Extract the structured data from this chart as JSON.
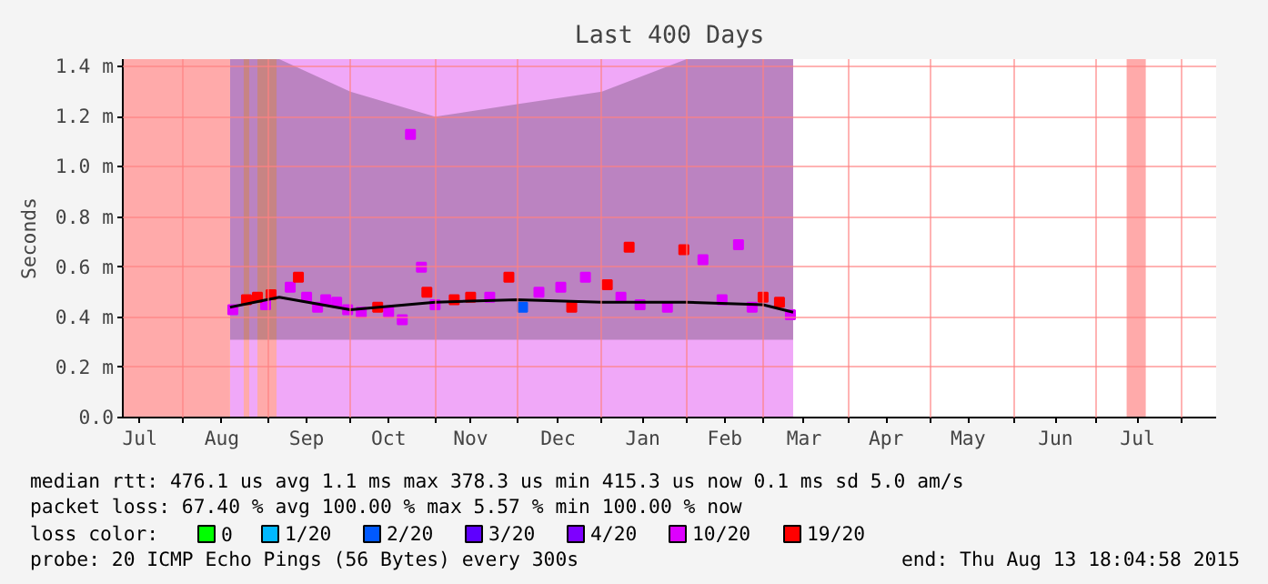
{
  "chart_data": {
    "type": "scatter",
    "title": "Last 400 Days",
    "ylabel": "Seconds",
    "legend_title": "loss color:",
    "legend": "bottom",
    "marker": "square",
    "grid": true,
    "xlim": [
      "2014-07-09T18:05",
      "2015-08-13T18:05"
    ],
    "xticks": [
      {
        "value": "2014-07-16",
        "label": "Jul"
      },
      {
        "value": "2014-08-01",
        "label": null
      },
      {
        "value": "2014-08-15",
        "label": "Aug"
      },
      {
        "value": "2014-09-01",
        "label": null
      },
      {
        "value": "2014-09-15",
        "label": "Sep"
      },
      {
        "value": "2014-10-01",
        "label": null
      },
      {
        "value": "2014-10-15",
        "label": "Oct"
      },
      {
        "value": "2014-11-01",
        "label": null
      },
      {
        "value": "2014-11-14",
        "label": "Nov"
      },
      {
        "value": "2014-12-01",
        "label": null
      },
      {
        "value": "2014-12-16",
        "label": "Dec"
      },
      {
        "value": "2015-01-01",
        "label": null
      },
      {
        "value": "2015-01-16",
        "label": "Jan"
      },
      {
        "value": "2015-02-01",
        "label": null
      },
      {
        "value": "2015-02-15",
        "label": "Feb"
      },
      {
        "value": "2015-03-01",
        "label": null
      },
      {
        "value": "2015-03-16",
        "label": "Mar"
      },
      {
        "value": "2015-04-01",
        "label": null
      },
      {
        "value": "2015-04-15",
        "label": "Apr"
      },
      {
        "value": "2015-05-01",
        "label": null
      },
      {
        "value": "2015-05-15",
        "label": "May"
      },
      {
        "value": "2015-06-01",
        "label": null
      },
      {
        "value": "2015-06-16",
        "label": "Jun"
      },
      {
        "value": "2015-07-01",
        "label": null
      },
      {
        "value": "2015-07-16",
        "label": "Jul"
      },
      {
        "value": "2015-08-01",
        "label": null
      }
    ],
    "ylim": [
      0,
      1.43
    ],
    "yticks": [
      {
        "value": 0,
        "label": "0.0"
      },
      {
        "value": 0.2,
        "label": "0.2 m"
      },
      {
        "value": 0.4,
        "label": "0.4 m"
      },
      {
        "value": 0.6,
        "label": "0.6 m"
      },
      {
        "value": 0.8,
        "label": "0.8 m"
      },
      {
        "value": 1.0,
        "label": "1.0 m"
      },
      {
        "value": 1.2,
        "label": "1.2 m"
      },
      {
        "value": 1.4,
        "label": "1.4 m"
      }
    ],
    "bands": [
      {
        "axis": "x",
        "from": "2014-08-18",
        "to": "2015-03-12",
        "color": "#f0a8f8"
      },
      {
        "axis": "x",
        "from": "2014-07-09T18:05",
        "to": "2014-08-18",
        "color": "#ffaaaa"
      },
      {
        "axis": "x",
        "from": "2014-08-23",
        "to": "2014-08-25",
        "color": "#ffaaaa"
      },
      {
        "axis": "x",
        "from": "2014-08-28",
        "to": "2014-09-04",
        "color": "#ffaaaa"
      },
      {
        "axis": "x",
        "from": "2015-07-12",
        "to": "2015-07-19",
        "color": "#ffaaaa"
      }
    ],
    "series": [
      {
        "name": "0",
        "color": "#00ff00"
      },
      {
        "name": "1/20",
        "color": "#00b8ff"
      },
      {
        "name": "2/20",
        "color": "#0059ff",
        "x": [
          "2014-12-03"
        ],
        "values": [
          0.44
        ]
      },
      {
        "name": "3/20",
        "color": "#5e00ff"
      },
      {
        "name": "4/20",
        "color": "#7e00ff"
      },
      {
        "name": "10/20",
        "color": "#dd00ff",
        "x": [
          "2014-08-19",
          "2014-08-31",
          "2014-09-09",
          "2014-09-15",
          "2014-09-19",
          "2014-09-22",
          "2014-09-26",
          "2014-09-30",
          "2014-10-05",
          "2014-10-15",
          "2014-10-20",
          "2014-10-23",
          "2014-10-27",
          "2014-11-01",
          "2014-11-21",
          "2014-12-09",
          "2014-12-17",
          "2014-12-26",
          "2015-01-08",
          "2015-01-15",
          "2015-01-25",
          "2015-02-07",
          "2015-02-14",
          "2015-02-20",
          "2015-02-25",
          "2015-03-11"
        ],
        "values": [
          0.43,
          0.45,
          0.52,
          0.48,
          0.44,
          0.47,
          0.46,
          0.43,
          0.42,
          0.42,
          0.39,
          1.13,
          0.6,
          0.45,
          0.48,
          0.5,
          0.52,
          0.56,
          0.48,
          0.45,
          0.44,
          0.63,
          0.47,
          0.69,
          0.44,
          0.41
        ]
      },
      {
        "name": "19/20",
        "color": "#ff0000",
        "x": [
          "2014-08-24",
          "2014-08-28",
          "2014-09-02",
          "2014-09-12",
          "2014-10-11",
          "2014-10-29",
          "2014-11-08",
          "2014-11-14",
          "2014-11-28",
          "2014-12-21",
          "2015-01-03",
          "2015-01-11",
          "2015-01-31",
          "2015-03-01",
          "2015-03-07"
        ],
        "values": [
          0.47,
          0.48,
          0.49,
          0.56,
          0.44,
          0.5,
          0.47,
          0.48,
          0.56,
          0.44,
          0.53,
          0.68,
          0.67,
          0.48,
          0.46
        ]
      },
      {
        "type": "line",
        "marker": "none",
        "color": "#000000",
        "x": [
          "2014-08-18",
          "2014-09-05",
          "2014-10-01",
          "2014-11-01",
          "2014-12-01",
          "2015-01-01",
          "2015-02-01",
          "2015-03-01",
          "2015-03-12"
        ],
        "values": [
          0.44,
          0.48,
          0.43,
          0.46,
          0.47,
          0.46,
          0.46,
          0.45,
          0.42
        ],
        "lower": [
          0.31,
          0.31,
          0.31,
          0.31,
          0.31,
          0.31,
          0.31,
          0.31,
          0.31
        ],
        "upper": [
          1.43,
          1.43,
          1.3,
          1.2,
          1.25,
          1.3,
          1.43,
          1.43,
          1.43
        ]
      }
    ],
    "annotations": [
      "median rtt:  476.1 us avg  1.1 ms max  378.3 us min  415.3 us now  0.1 ms sd  5.0   am/s",
      "packet loss: 67.40 % avg  100.00 % max  5.57 % min  100.00 % now",
      "probe:        20 ICMP Echo Pings (56 Bytes) every 300s",
      "end: Thu Aug 13 18:04:58 2015"
    ]
  }
}
